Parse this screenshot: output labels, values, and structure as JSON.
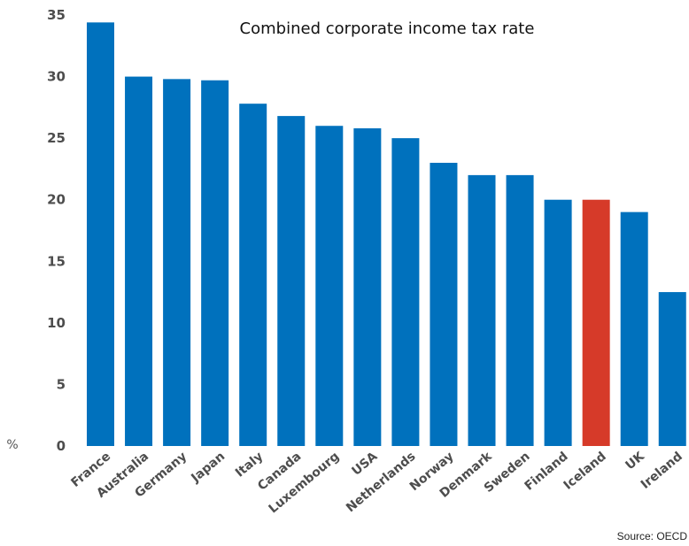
{
  "chart_data": {
    "type": "bar",
    "title": "Combined corporate income tax rate",
    "unit_label": "%",
    "source": "Source: OECD",
    "categories": [
      "France",
      "Australia",
      "Germany",
      "Japan",
      "Italy",
      "Canada",
      "Luxembourg",
      "USA",
      "Netherlands",
      "Norway",
      "Denmark",
      "Sweden",
      "Finland",
      "Iceland",
      "UK",
      "Ireland"
    ],
    "values": [
      34.4,
      30.0,
      29.8,
      29.7,
      27.8,
      26.8,
      26.0,
      25.8,
      25.0,
      23.0,
      22.0,
      22.0,
      20.0,
      20.0,
      19.0,
      12.5
    ],
    "highlight": "Iceland",
    "ylim": [
      0,
      35
    ],
    "yticks": [
      0,
      5,
      10,
      15,
      20,
      25,
      30,
      35
    ],
    "grid": false,
    "colors": {
      "bar": "#0071bd",
      "highlight": "#d63a29",
      "text": "#4d4d4d"
    }
  }
}
